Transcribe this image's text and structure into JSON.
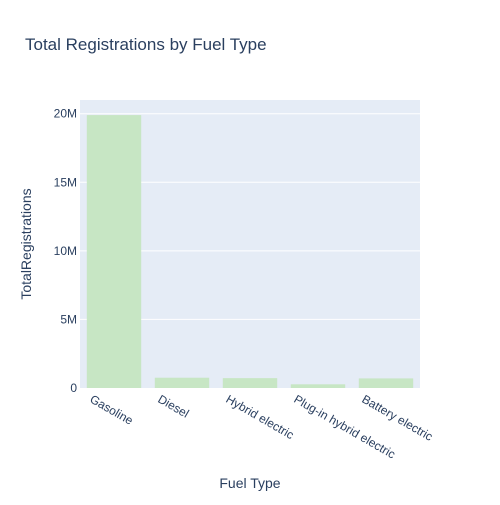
{
  "chart_data": {
    "type": "bar",
    "title": "Total Registrations by Fuel Type",
    "xlabel": "Fuel Type",
    "ylabel": "TotalRegistrations",
    "categories": [
      "Gasoline",
      "Diesel",
      "Hybrid electric",
      "Plug-in hybrid electric",
      "Battery electric"
    ],
    "values": [
      19900000,
      750000,
      720000,
      270000,
      700000
    ],
    "ylim": [
      0,
      21000000
    ],
    "yticks": [
      {
        "value": 0,
        "label": "0"
      },
      {
        "value": 5000000,
        "label": "5M"
      },
      {
        "value": 10000000,
        "label": "10M"
      },
      {
        "value": 15000000,
        "label": "15M"
      },
      {
        "value": 20000000,
        "label": "20M"
      }
    ],
    "grid": true,
    "legend": "none",
    "colors": {
      "bar": "#c7e6c4",
      "plot_background": "#e5ecf6",
      "gridline": "#ffffff",
      "text": "#2a3f5f"
    }
  }
}
